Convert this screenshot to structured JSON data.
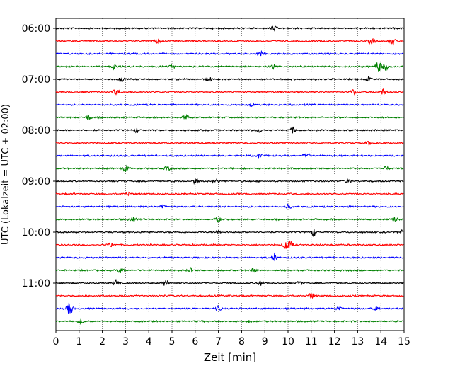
{
  "chart_data": {
    "type": "line",
    "title": "",
    "xlabel": "Zeit  [min]",
    "ylabel": "UTC (Lokalzeit = UTC + 02:00)",
    "xlim": [
      0,
      15
    ],
    "x_ticks": [
      "0",
      "1",
      "2",
      "3",
      "4",
      "5",
      "6",
      "7",
      "8",
      "9",
      "10",
      "11",
      "12",
      "13",
      "14",
      "15"
    ],
    "y_ticks": [
      "06:00",
      "07:00",
      "08:00",
      "09:00",
      "10:00",
      "11:00"
    ],
    "grid": "vertical-dotted",
    "row_interval_minutes": 15,
    "series_colors": [
      "#000000",
      "#ff0000",
      "#0000ff",
      "#008000"
    ],
    "series": [
      {
        "start": "06:00",
        "events": [
          [
            9.4,
            3
          ]
        ]
      },
      {
        "start": "06:15",
        "events": [
          [
            4.4,
            2
          ],
          [
            13.6,
            4
          ],
          [
            14.5,
            5
          ]
        ]
      },
      {
        "start": "06:30",
        "events": [
          [
            8.8,
            3
          ]
        ]
      },
      {
        "start": "06:45",
        "events": [
          [
            2.5,
            3
          ],
          [
            5.0,
            2
          ],
          [
            9.4,
            4
          ],
          [
            13.9,
            8
          ],
          [
            14.2,
            5
          ]
        ]
      },
      {
        "start": "07:00",
        "events": [
          [
            2.8,
            3
          ],
          [
            6.6,
            3
          ],
          [
            13.5,
            3
          ]
        ]
      },
      {
        "start": "07:15",
        "events": [
          [
            2.6,
            4
          ],
          [
            12.8,
            3
          ],
          [
            14.1,
            4
          ]
        ]
      },
      {
        "start": "07:30",
        "events": [
          [
            8.4,
            2
          ]
        ]
      },
      {
        "start": "07:45",
        "events": [
          [
            1.4,
            3
          ],
          [
            5.6,
            3
          ]
        ]
      },
      {
        "start": "08:00",
        "events": [
          [
            3.5,
            3
          ],
          [
            8.8,
            3
          ],
          [
            10.2,
            4
          ]
        ]
      },
      {
        "start": "08:15",
        "events": [
          [
            13.5,
            3
          ]
        ]
      },
      {
        "start": "08:30",
        "events": [
          [
            8.8,
            4
          ],
          [
            10.8,
            5
          ]
        ]
      },
      {
        "start": "08:45",
        "events": [
          [
            3.0,
            4
          ],
          [
            4.8,
            3
          ],
          [
            14.2,
            3
          ]
        ]
      },
      {
        "start": "09:00",
        "events": [
          [
            6.0,
            3
          ],
          [
            6.9,
            3
          ],
          [
            12.6,
            3
          ]
        ]
      },
      {
        "start": "09:15",
        "events": [
          [
            3.1,
            3
          ]
        ]
      },
      {
        "start": "09:30",
        "events": [
          [
            4.6,
            3
          ],
          [
            10.0,
            3
          ]
        ]
      },
      {
        "start": "09:45",
        "events": [
          [
            3.3,
            3
          ],
          [
            7.0,
            3
          ],
          [
            14.6,
            3
          ]
        ]
      },
      {
        "start": "10:00",
        "events": [
          [
            7.0,
            3
          ],
          [
            11.1,
            5
          ],
          [
            14.9,
            3
          ]
        ]
      },
      {
        "start": "10:15",
        "events": [
          [
            2.4,
            3
          ],
          [
            9.9,
            7
          ],
          [
            10.1,
            5
          ]
        ]
      },
      {
        "start": "10:30",
        "events": [
          [
            9.4,
            5
          ]
        ]
      },
      {
        "start": "10:45",
        "events": [
          [
            2.8,
            4
          ],
          [
            5.8,
            3
          ],
          [
            8.5,
            3
          ]
        ]
      },
      {
        "start": "11:00",
        "events": [
          [
            2.6,
            4
          ],
          [
            4.7,
            5
          ],
          [
            8.8,
            3
          ],
          [
            10.5,
            3
          ]
        ]
      },
      {
        "start": "11:15",
        "events": [
          [
            11.0,
            4
          ]
        ]
      },
      {
        "start": "11:30",
        "events": [
          [
            0.6,
            9
          ],
          [
            7.0,
            3
          ],
          [
            12.2,
            3
          ],
          [
            13.8,
            3
          ]
        ]
      },
      {
        "start": "11:45",
        "events": [
          [
            1.1,
            3
          ],
          [
            8.3,
            2
          ]
        ]
      }
    ]
  }
}
